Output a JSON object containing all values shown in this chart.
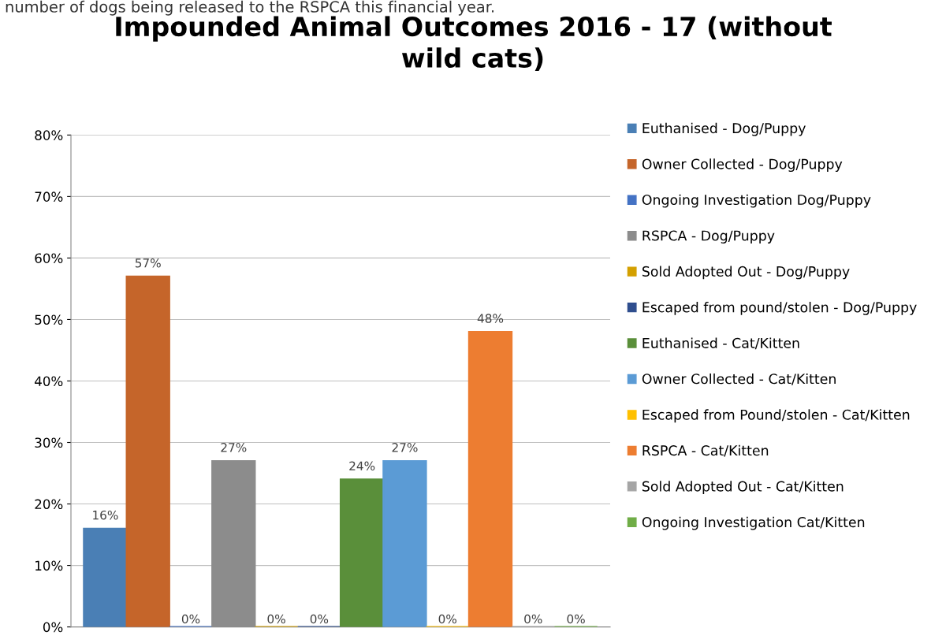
{
  "chart_data": {
    "type": "bar",
    "title": "Impounded Animal Outcomes 2016 - 17 (without\nwild cats)",
    "annotations": [
      "number of dogs being released to the RSPCA this financial year."
    ],
    "categories": [
      null
    ],
    "series": [
      {
        "name": "Euthanised - Dog/Puppy",
        "color": "#4a7fb5",
        "values": [
          16
        ],
        "value_labels": [
          "16%"
        ]
      },
      {
        "name": "Owner Collected - Dog/Puppy",
        "color": "#c5652a",
        "values": [
          57
        ],
        "value_labels": [
          "57%"
        ]
      },
      {
        "name": "Ongoing Investigation Dog/Puppy",
        "color": "#4472c4",
        "values": [
          0
        ],
        "value_labels": [
          "0%"
        ]
      },
      {
        "name": "RSPCA - Dog/Puppy",
        "color": "#8c8c8c",
        "values": [
          27
        ],
        "value_labels": [
          "27%"
        ]
      },
      {
        "name": "Sold Adopted Out - Dog/Puppy",
        "color": "#d4a000",
        "values": [
          0
        ],
        "value_labels": [
          "0%"
        ]
      },
      {
        "name": "Escaped from pound/stolen - Dog/Puppy",
        "color": "#2f4e8e",
        "values": [
          0
        ],
        "value_labels": [
          "0%"
        ]
      },
      {
        "name": "Euthanised - Cat/Kitten",
        "color": "#5a8f3a",
        "values": [
          24
        ],
        "value_labels": [
          "24%"
        ]
      },
      {
        "name": "Owner Collected - Cat/Kitten",
        "color": "#5b9bd5",
        "values": [
          27
        ],
        "value_labels": [
          "27%"
        ]
      },
      {
        "name": "Escaped from Pound/stolen - Cat/Kitten",
        "color": "#ffc000",
        "values": [
          0
        ],
        "value_labels": [
          "0%"
        ]
      },
      {
        "name": "RSPCA - Cat/Kitten",
        "color": "#ed7d31",
        "values": [
          48
        ],
        "value_labels": [
          "48%"
        ]
      },
      {
        "name": "Sold Adopted Out - Cat/Kitten",
        "color": "#a5a5a5",
        "values": [
          0
        ],
        "value_labels": [
          "0%"
        ]
      },
      {
        "name": "Ongoing Investigation Cat/Kitten",
        "color": "#70ad47",
        "values": [
          0
        ],
        "value_labels": [
          "0%"
        ]
      }
    ],
    "ylim": [
      0,
      80
    ],
    "yticks": [
      {
        "value": 0,
        "label": "0%"
      },
      {
        "value": 10,
        "label": "10%"
      },
      {
        "value": 20,
        "label": "20%"
      },
      {
        "value": 30,
        "label": "30%"
      },
      {
        "value": 40,
        "label": "40%"
      },
      {
        "value": 50,
        "label": "50%"
      },
      {
        "value": 60,
        "label": "60%"
      },
      {
        "value": 70,
        "label": "70%"
      },
      {
        "value": 80,
        "label": "80%"
      }
    ],
    "grid": "y",
    "legend": "right"
  }
}
